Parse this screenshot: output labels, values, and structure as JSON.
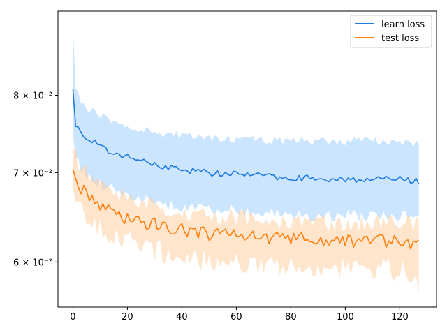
{
  "chart_data": {
    "type": "line",
    "title": "",
    "xlabel": "",
    "ylabel": "",
    "yscale": "log",
    "xlim": [
      -5.5,
      133.5
    ],
    "ylim": [
      0.0555,
      0.0925
    ],
    "grid": false,
    "legend_position": "top-right",
    "x_ticks": [
      0,
      20,
      40,
      60,
      80,
      100,
      120
    ],
    "x_tick_labels": [
      "0",
      "20",
      "40",
      "60",
      "80",
      "100",
      "120"
    ],
    "y_ticks": [
      0.08,
      0.07,
      0.06
    ],
    "y_tick_labels": [
      "8 × 10⁻²",
      "7 × 10⁻²",
      "6 × 10⁻²"
    ],
    "x_start": 0,
    "x_end": 127,
    "series": [
      {
        "name": "learn loss",
        "color": "#1f7be0",
        "band_color": "#aad4ff",
        "anchors_x": [
          0,
          1,
          3,
          5,
          8,
          10,
          15,
          20,
          25,
          30,
          35,
          40,
          45,
          50,
          55,
          60,
          70,
          80,
          90,
          100,
          110,
          120,
          127
        ],
        "mean": [
          0.0808,
          0.0762,
          0.0748,
          0.0744,
          0.0737,
          0.0731,
          0.0724,
          0.0719,
          0.0714,
          0.071,
          0.0707,
          0.0704,
          0.0702,
          0.07,
          0.0699,
          0.0698,
          0.0696,
          0.0694,
          0.0693,
          0.0692,
          0.0692,
          0.0692,
          0.0689
        ],
        "upper": [
          0.09,
          0.0815,
          0.079,
          0.0782,
          0.0776,
          0.0771,
          0.0765,
          0.076,
          0.0755,
          0.0751,
          0.0748,
          0.0746,
          0.0745,
          0.0744,
          0.0743,
          0.0742,
          0.0741,
          0.074,
          0.074,
          0.0739,
          0.0739,
          0.0739,
          0.0735
        ],
        "lower": [
          0.075,
          0.0722,
          0.0703,
          0.0697,
          0.069,
          0.0685,
          0.0679,
          0.0674,
          0.0669,
          0.0665,
          0.0662,
          0.066,
          0.0658,
          0.0657,
          0.0656,
          0.0655,
          0.0653,
          0.0651,
          0.065,
          0.065,
          0.065,
          0.065,
          0.065
        ],
        "noise": 0.0008
      },
      {
        "name": "test loss",
        "color": "#ff7f0e",
        "band_color": "#ffcc99",
        "anchors_x": [
          0,
          2,
          5,
          8,
          10,
          15,
          20,
          25,
          30,
          35,
          40,
          45,
          50,
          55,
          60,
          70,
          80,
          90,
          100,
          110,
          120,
          127
        ],
        "mean": [
          0.0704,
          0.0685,
          0.0675,
          0.0665,
          0.066,
          0.0652,
          0.0647,
          0.0643,
          0.064,
          0.0637,
          0.0634,
          0.0632,
          0.063,
          0.0629,
          0.0628,
          0.0626,
          0.0625,
          0.0624,
          0.0623,
          0.0622,
          0.0622,
          0.062
        ],
        "upper": [
          0.0728,
          0.0712,
          0.0701,
          0.0692,
          0.0686,
          0.0677,
          0.0671,
          0.0665,
          0.0661,
          0.0658,
          0.0655,
          0.0652,
          0.065,
          0.0649,
          0.0648,
          0.0646,
          0.0645,
          0.0644,
          0.0643,
          0.0642,
          0.0642,
          0.064
        ],
        "lower": [
          0.0683,
          0.0661,
          0.0651,
          0.0641,
          0.0636,
          0.0628,
          0.0622,
          0.0617,
          0.0612,
          0.0608,
          0.0605,
          0.0602,
          0.06,
          0.0599,
          0.0598,
          0.0596,
          0.0595,
          0.0594,
          0.0593,
          0.0592,
          0.0592,
          0.0575
        ],
        "noise": 0.0015
      }
    ]
  }
}
